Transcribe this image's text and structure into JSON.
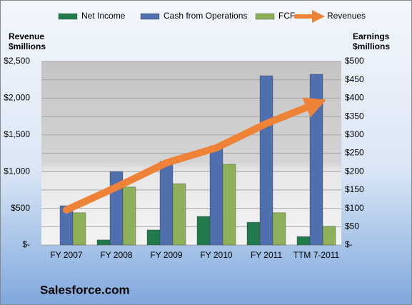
{
  "chart_data": {
    "type": "bar",
    "title": "Salesforce.com",
    "y_label": [
      "Revenue",
      "$millions"
    ],
    "y2_label": [
      "Earnings",
      "$millions"
    ],
    "categories": [
      "FY 2007",
      "FY 2008",
      "FY 2009",
      "FY 2010",
      "FY 2011",
      "TTM 7-2011"
    ],
    "series": [
      {
        "name": "Net Income",
        "color": "#217a4c",
        "type": "bar",
        "axis": "y2",
        "values": [
          0,
          14,
          41,
          78,
          62,
          23
        ]
      },
      {
        "name": "Cash from Operations",
        "color": "#4f6fae",
        "type": "bar",
        "axis": "y2",
        "values": [
          107,
          200,
          228,
          270,
          461,
          465
        ]
      },
      {
        "name": "FCF",
        "color": "#8fb05a",
        "type": "bar",
        "axis": "y2",
        "values": [
          88,
          158,
          167,
          220,
          88,
          51
        ]
      },
      {
        "name": "Revenues",
        "color": "#ee8236",
        "type": "line",
        "axis": "y",
        "values": [
          477,
          788,
          1119,
          1323,
          1654,
          1926
        ]
      }
    ],
    "ylim": [
      0,
      2500
    ],
    "yticks": [
      {
        "value": 0,
        "label": "$-"
      },
      {
        "value": 500,
        "label": "$500"
      },
      {
        "value": 1000,
        "label": "$1,000"
      },
      {
        "value": 1500,
        "label": "$1,500"
      },
      {
        "value": 2000,
        "label": "$2,000"
      },
      {
        "value": 2500,
        "label": "$2,500"
      }
    ],
    "y2lim": [
      0,
      500
    ],
    "y2ticks": [
      {
        "value": 0,
        "label": "$-"
      },
      {
        "value": 50,
        "label": "$50"
      },
      {
        "value": 100,
        "label": "$100"
      },
      {
        "value": 150,
        "label": "$150"
      },
      {
        "value": 200,
        "label": "$200"
      },
      {
        "value": 250,
        "label": "$250"
      },
      {
        "value": 300,
        "label": "$300"
      },
      {
        "value": 350,
        "label": "$350"
      },
      {
        "value": 400,
        "label": "$400"
      },
      {
        "value": 450,
        "label": "$450"
      },
      {
        "value": 500,
        "label": "$500"
      }
    ],
    "grid": true,
    "legend": "top"
  }
}
